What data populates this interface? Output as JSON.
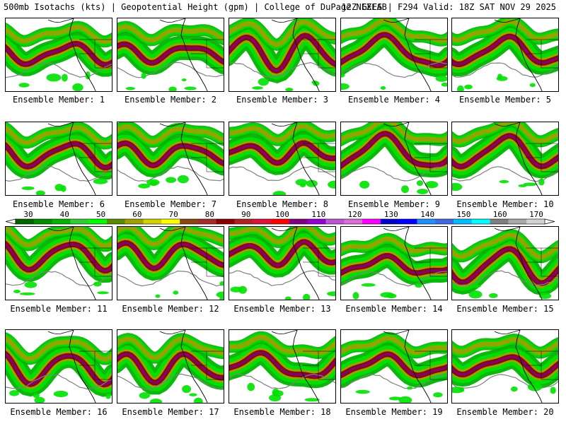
{
  "header": {
    "left": "500mb Isotachs (kts) | Geopotential Height (gpm) | College of DuPage NEXLAB",
    "right": "12Z GEFS | F294 Valid: 18Z SAT NOV 29 2025"
  },
  "members": [
    "Ensemble Member: 1",
    "Ensemble Member: 2",
    "Ensemble Member: 3",
    "Ensemble Member: 4",
    "Ensemble Member: 5",
    "Ensemble Member: 6",
    "Ensemble Member: 7",
    "Ensemble Member: 8",
    "Ensemble Member: 9",
    "Ensemble Member: 10",
    "Ensemble Member: 11",
    "Ensemble Member: 12",
    "Ensemble Member: 13",
    "Ensemble Member: 14",
    "Ensemble Member: 15",
    "Ensemble Member: 16",
    "Ensemble Member: 17",
    "Ensemble Member: 18",
    "Ensemble Member: 19",
    "Ensemble Member: 20"
  ],
  "colorbar": {
    "labels": [
      "30",
      "40",
      "50",
      "60",
      "70",
      "80",
      "90",
      "100",
      "110",
      "120",
      "130",
      "140",
      "150",
      "160",
      "170"
    ],
    "colors": [
      "#006400",
      "#008c00",
      "#00b400",
      "#32cd32",
      "#00ff00",
      "#5a8c00",
      "#a0a000",
      "#d2d200",
      "#ffff00",
      "#8b4513",
      "#a52a2a",
      "#8b0000",
      "#b22222",
      "#dc143c",
      "#ff0000",
      "#800080",
      "#9400d3",
      "#ba55d3",
      "#da70d6",
      "#ff00ff",
      "#0000cd",
      "#0000ff",
      "#1e90ff",
      "#4169e1",
      "#00bfff",
      "#00ffff",
      "#808080",
      "#a9a9a9",
      "#d3d3d3"
    ]
  },
  "style": {
    "jet_colors": [
      "#00b400",
      "#00e000",
      "#a0a000",
      "#8b0000",
      "#800080"
    ],
    "height_contour_color": "#808080",
    "map_line_color": "#000000"
  }
}
